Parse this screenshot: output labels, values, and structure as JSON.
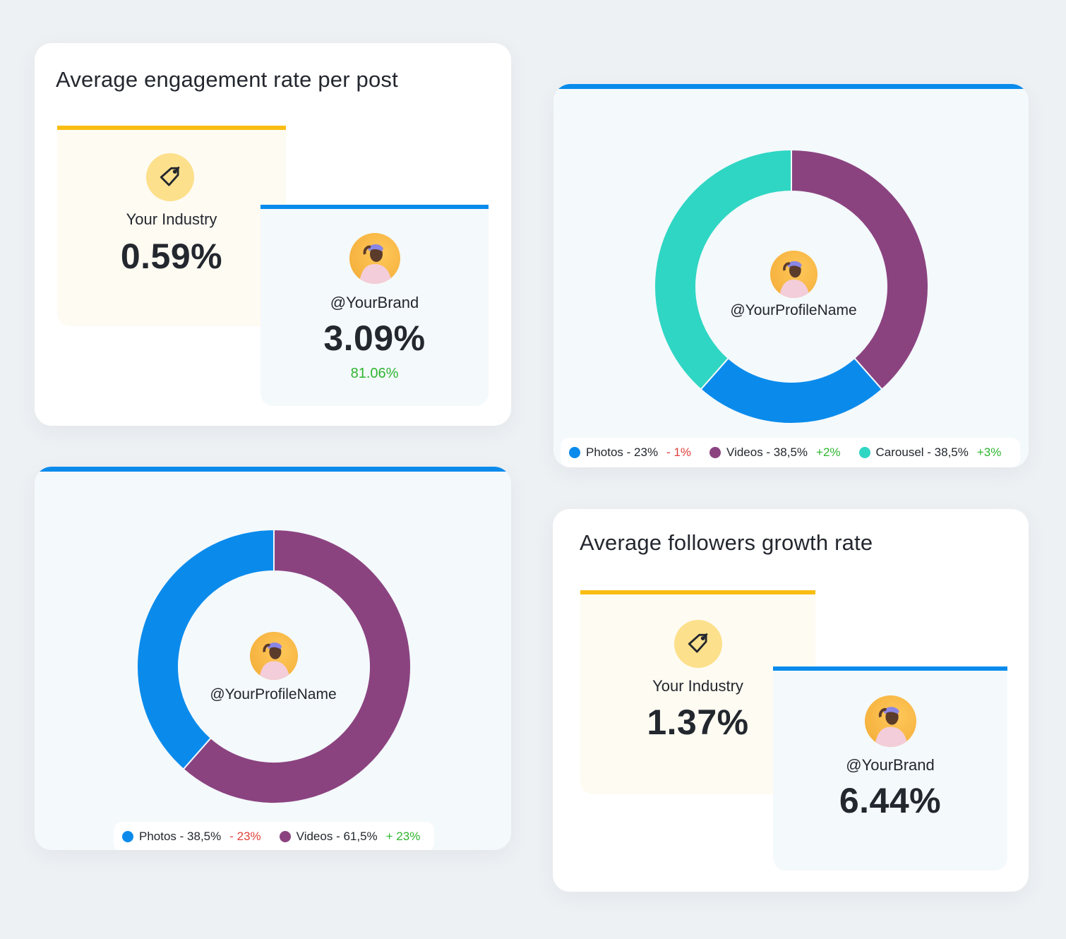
{
  "colors": {
    "industry_accent": "#f9bd12",
    "brand_accent": "#0a8bec",
    "photos": "#0a8bec",
    "videos": "#8b4380",
    "carousel": "#2fd6c3",
    "positive": "#2fb52f",
    "negative": "#e0413a"
  },
  "engagement_card": {
    "title": "Average engagement rate per post",
    "industry": {
      "label": "Your Industry",
      "value": "0.59%",
      "icon": "tag-icon"
    },
    "brand": {
      "label": "@YourBrand",
      "value": "3.09%",
      "delta": "81.06%",
      "icon": "avatar"
    }
  },
  "followers_card": {
    "title": "Average followers growth rate",
    "industry": {
      "label": "Your Industry",
      "value": "1.37%",
      "icon": "tag-icon"
    },
    "brand": {
      "label": "@YourBrand",
      "value": "6.44%",
      "icon": "avatar"
    }
  },
  "chart_data": [
    {
      "type": "pie",
      "donut": true,
      "title": "",
      "center_label": "@YourProfileName",
      "start": "top",
      "direction": "clockwise",
      "slices": [
        {
          "name": "Videos",
          "value": 38.5,
          "color": "#8b4380"
        },
        {
          "name": "Photos",
          "value": 23,
          "color": "#0a8bec"
        },
        {
          "name": "Carousel",
          "value": 38.5,
          "color": "#2fd6c3"
        }
      ],
      "legend": [
        {
          "name": "Photos",
          "text": "Photos - 23%",
          "delta": "- 1%",
          "delta_sign": "negative",
          "color": "#0a8bec"
        },
        {
          "name": "Videos",
          "text": "Videos - 38,5%",
          "delta": "+2%",
          "delta_sign": "positive",
          "color": "#8b4380"
        },
        {
          "name": "Carousel",
          "text": "Carousel - 38,5%",
          "delta": "+3%",
          "delta_sign": "positive",
          "color": "#2fd6c3"
        }
      ],
      "legend_position": "bottom"
    },
    {
      "type": "pie",
      "donut": true,
      "title": "",
      "center_label": "@YourProfileName",
      "start": "top",
      "direction": "clockwise",
      "slices": [
        {
          "name": "Videos",
          "value": 61.5,
          "color": "#8b4380"
        },
        {
          "name": "Photos",
          "value": 38.5,
          "color": "#0a8bec"
        }
      ],
      "legend": [
        {
          "name": "Photos",
          "text": "Photos - 38,5%",
          "delta": "- 23%",
          "delta_sign": "negative",
          "color": "#0a8bec"
        },
        {
          "name": "Videos",
          "text": "Videos - 61,5%",
          "delta": "+ 23%",
          "delta_sign": "positive",
          "color": "#8b4380"
        }
      ],
      "legend_position": "bottom"
    }
  ]
}
